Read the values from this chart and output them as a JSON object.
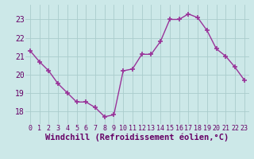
{
  "x": [
    0,
    1,
    2,
    3,
    4,
    5,
    6,
    7,
    8,
    9,
    10,
    11,
    12,
    13,
    14,
    15,
    16,
    17,
    18,
    19,
    20,
    21,
    22,
    23
  ],
  "y": [
    21.3,
    20.7,
    20.2,
    19.5,
    19.0,
    18.5,
    18.5,
    18.2,
    17.7,
    17.8,
    20.2,
    20.3,
    21.1,
    21.1,
    21.8,
    23.0,
    23.0,
    23.3,
    23.1,
    22.4,
    21.4,
    21.0,
    20.4,
    19.7
  ],
  "line_color": "#993399",
  "marker": "+",
  "marker_size": 4,
  "marker_linewidth": 1.2,
  "bg_color": "#cce8e8",
  "grid_color": "#aacccc",
  "xlabel": "Windchill (Refroidissement éolien,°C)",
  "xlabel_fontsize": 7.5,
  "yticks": [
    18,
    19,
    20,
    21,
    22,
    23
  ],
  "xticks": [
    0,
    1,
    2,
    3,
    4,
    5,
    6,
    7,
    8,
    9,
    10,
    11,
    12,
    13,
    14,
    15,
    16,
    17,
    18,
    19,
    20,
    21,
    22,
    23
  ],
  "ylim": [
    17.3,
    23.8
  ],
  "xlim": [
    -0.5,
    23.5
  ],
  "ytick_fontsize": 7,
  "xtick_fontsize": 6,
  "line_width": 1.0,
  "label_color": "#660066"
}
